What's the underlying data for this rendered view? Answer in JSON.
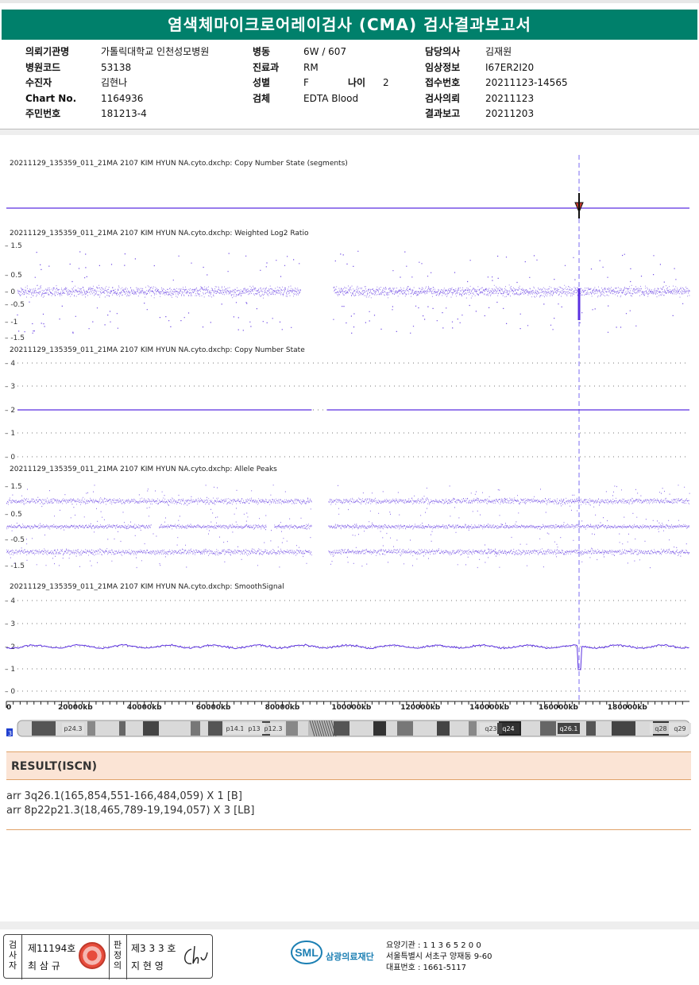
{
  "title": "염색체마이크로어레이검사 (CMA) 검사결과보고서",
  "patient": {
    "col1": [
      {
        "label": "의뢰기관명",
        "value": "가톨릭대학교 인천성모병원"
      },
      {
        "label": "병원코드",
        "value": "53138"
      },
      {
        "label": "수진자",
        "value": "김현나"
      },
      {
        "label": "Chart No.",
        "value": "1164936"
      },
      {
        "label": "주민번호",
        "value": "181213-4"
      }
    ],
    "col2": [
      {
        "label": "병동",
        "value": "6W / 607"
      },
      {
        "label": "진료과",
        "value": "RM"
      },
      {
        "label": "성별",
        "value": "F"
      },
      {
        "label": "검체",
        "value": "EDTA Blood"
      }
    ],
    "age_label": "나이",
    "age_value": "2",
    "col3": [
      {
        "label": "담당의사",
        "value": "김재원"
      },
      {
        "label": "임상정보",
        "value": "I67ER2I20"
      },
      {
        "label": "접수번호",
        "value": "20211123-14565"
      },
      {
        "label": "검사의뢰",
        "value": "20211123"
      },
      {
        "label": "결과보고",
        "value": "20211203"
      }
    ]
  },
  "tracks": {
    "segments": "20211129_135359_011_21MA 2107 KIM HYUN NA.cyto.dxchp: Copy Number State (segments)",
    "log2": "20211129_135359_011_21MA 2107 KIM HYUN NA.cyto.dxchp: Weighted Log2 Ratio",
    "cn": "20211129_135359_011_21MA 2107 KIM HYUN NA.cyto.dxchp: Copy Number State",
    "allele": "20211129_135359_011_21MA 2107 KIM HYUN NA.cyto.dxchp: Allele Peaks",
    "smooth": "20211129_135359_011_21MA 2107 KIM HYUN NA.cyto.dxchp: SmoothSignal"
  },
  "axis_ticks": {
    "log2": [
      "1.5",
      "0.5",
      "0",
      "-0.5",
      "-1",
      "-1.5"
    ],
    "cn": [
      "4",
      "3",
      "2",
      "1",
      "0"
    ],
    "allele": [
      "1.5",
      "0.5",
      "-0.5",
      "-1.5"
    ],
    "smooth": [
      "4",
      "3",
      "2",
      "1",
      "0"
    ]
  },
  "position_axis": [
    "0",
    "20000kb",
    "40000kb",
    "60000kb",
    "80000kb",
    "100000kb",
    "120000kb",
    "140000kb",
    "160000kb",
    "180000kb"
  ],
  "chromosome": {
    "number": "3",
    "bands": [
      "p24.3",
      "p14.1",
      "p13",
      "p12.3",
      "q23",
      "q24",
      "q26.1",
      "q28",
      "q29"
    ]
  },
  "colors": {
    "brand": "#00806b",
    "data": "#5a2fe0",
    "result_bg": "#fbe4d5"
  },
  "result": {
    "heading": "RESULT(ISCN)",
    "lines": [
      "arr 3q26.1(165,854,551-166,484,059) X 1 [B]",
      "arr 8p22p21.3(18,465,789-19,194,057) X 3 [LB]"
    ]
  },
  "footer": {
    "inspector_label": "검사자",
    "inspector_license": "제11194호",
    "inspector_name": "최 삼 규",
    "reviewer_label": "판정의",
    "reviewer_license": "제3 3 3 호",
    "reviewer_name": "지 현 영",
    "org_name": "삼광의료재단",
    "org_code": "요양기관 : 1 1 3 6 5 2 0 0",
    "address": "서울특별시 서초구 양재동 9-60",
    "phone": "대표번호 : 1661-5117"
  }
}
